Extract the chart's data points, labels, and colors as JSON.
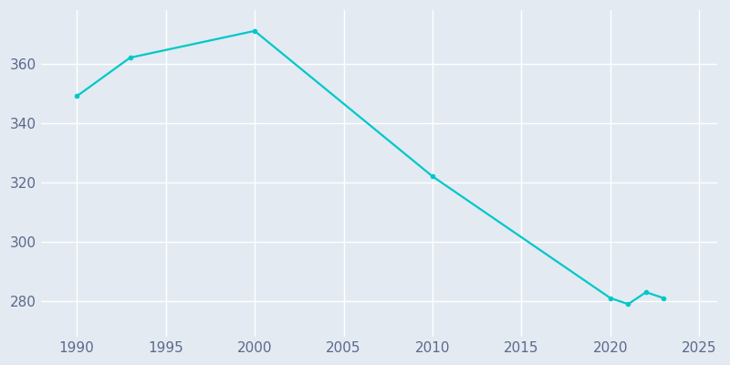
{
  "years": [
    1990,
    1993,
    2000,
    2010,
    2020,
    2021,
    2022,
    2023
  ],
  "population": [
    349,
    362,
    371,
    322,
    281,
    279,
    283,
    281
  ],
  "line_color": "#00C8C8",
  "bg_color": "#E3EAF2",
  "grid_color": "#FFFFFF",
  "tick_color": "#5B6A8A",
  "xlim": [
    1988,
    2026
  ],
  "ylim": [
    268,
    378
  ],
  "xticks": [
    1990,
    1995,
    2000,
    2005,
    2010,
    2015,
    2020,
    2025
  ],
  "yticks": [
    280,
    300,
    320,
    340,
    360
  ],
  "linewidth": 1.6,
  "markersize": 3.0,
  "tick_labelsize": 11
}
